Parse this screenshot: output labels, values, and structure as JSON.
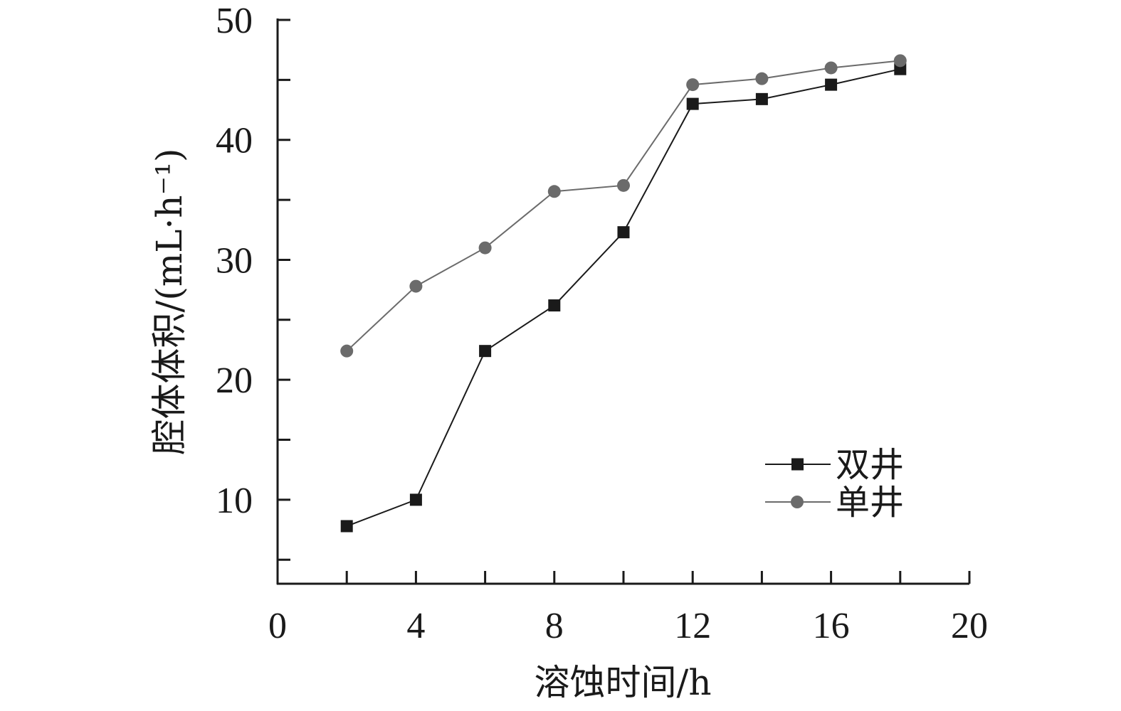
{
  "chart_data": {
    "type": "line",
    "xlabel": "溶蚀时间/h",
    "ylabel": "腔体体积/(mL·h⁻¹)",
    "xlim": [
      0,
      20
    ],
    "ylim": [
      3,
      50
    ],
    "x_ticks": [
      0,
      4,
      8,
      12,
      16,
      20
    ],
    "x_minor_ticks": [
      2,
      6,
      10,
      14,
      18
    ],
    "y_ticks": [
      10,
      20,
      30,
      40,
      50
    ],
    "y_minor_ticks": [
      5,
      15,
      25,
      35,
      45
    ],
    "grid": false,
    "legend_position": "lower-right",
    "x": [
      2,
      4,
      6,
      8,
      10,
      12,
      14,
      16,
      18
    ],
    "series": [
      {
        "name": "双井",
        "marker": "square",
        "color": "#1a1a1a",
        "values": [
          7.8,
          10.0,
          22.4,
          26.2,
          32.3,
          43.0,
          43.4,
          44.6,
          45.9
        ]
      },
      {
        "name": "单井",
        "marker": "circle",
        "color": "#6b6b6b",
        "values": [
          22.4,
          27.8,
          31.0,
          35.7,
          36.2,
          44.6,
          45.1,
          46.0,
          46.6
        ]
      }
    ]
  }
}
